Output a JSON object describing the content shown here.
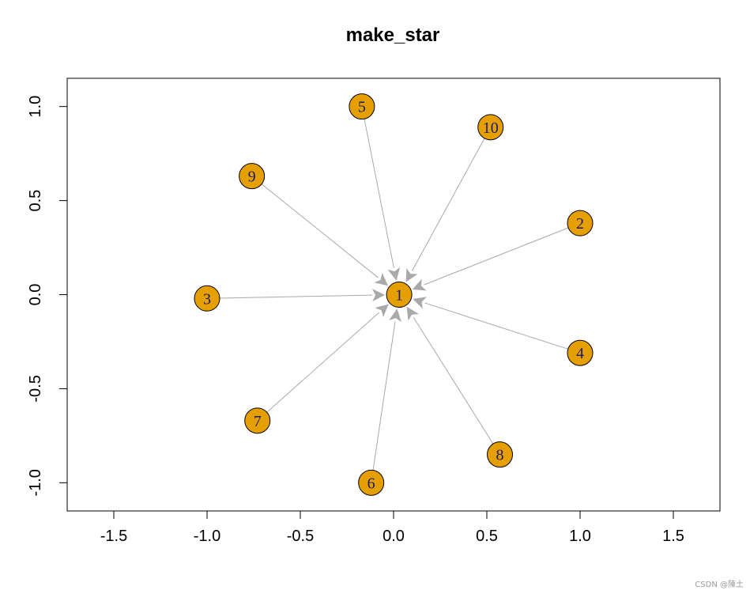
{
  "chart_data": {
    "type": "network",
    "title": "make_star",
    "xlim": [
      -1.75,
      1.75
    ],
    "ylim": [
      -1.15,
      1.15
    ],
    "x_ticks": [
      -1.5,
      -1.0,
      -0.5,
      0.0,
      0.5,
      1.0,
      1.5
    ],
    "x_tick_labels": [
      "-1.5",
      "-1.0",
      "-0.5",
      "0.0",
      "0.5",
      "1.0",
      "1.5"
    ],
    "y_ticks": [
      -1.0,
      -0.5,
      0.0,
      0.5,
      1.0
    ],
    "y_tick_labels": [
      "-1.0",
      "-0.5",
      "0.0",
      "0.5",
      "1.0"
    ],
    "node_color": "#E69F00",
    "edge_color": "#A9A9A9",
    "nodes": [
      {
        "id": "1",
        "x": 0.03,
        "y": 0.0
      },
      {
        "id": "2",
        "x": 1.0,
        "y": 0.38
      },
      {
        "id": "3",
        "x": -1.0,
        "y": -0.02
      },
      {
        "id": "4",
        "x": 1.0,
        "y": -0.31
      },
      {
        "id": "5",
        "x": -0.17,
        "y": 1.0
      },
      {
        "id": "6",
        "x": -0.12,
        "y": -1.0
      },
      {
        "id": "7",
        "x": -0.73,
        "y": -0.67
      },
      {
        "id": "8",
        "x": 0.57,
        "y": -0.85
      },
      {
        "id": "9",
        "x": -0.76,
        "y": 0.63
      },
      {
        "id": "10",
        "x": 0.52,
        "y": 0.89
      }
    ],
    "edges": [
      {
        "from": "2",
        "to": "1"
      },
      {
        "from": "3",
        "to": "1"
      },
      {
        "from": "4",
        "to": "1"
      },
      {
        "from": "5",
        "to": "1"
      },
      {
        "from": "6",
        "to": "1"
      },
      {
        "from": "7",
        "to": "1"
      },
      {
        "from": "8",
        "to": "1"
      },
      {
        "from": "9",
        "to": "1"
      },
      {
        "from": "10",
        "to": "1"
      }
    ]
  },
  "watermark": "CSDN @陳土"
}
